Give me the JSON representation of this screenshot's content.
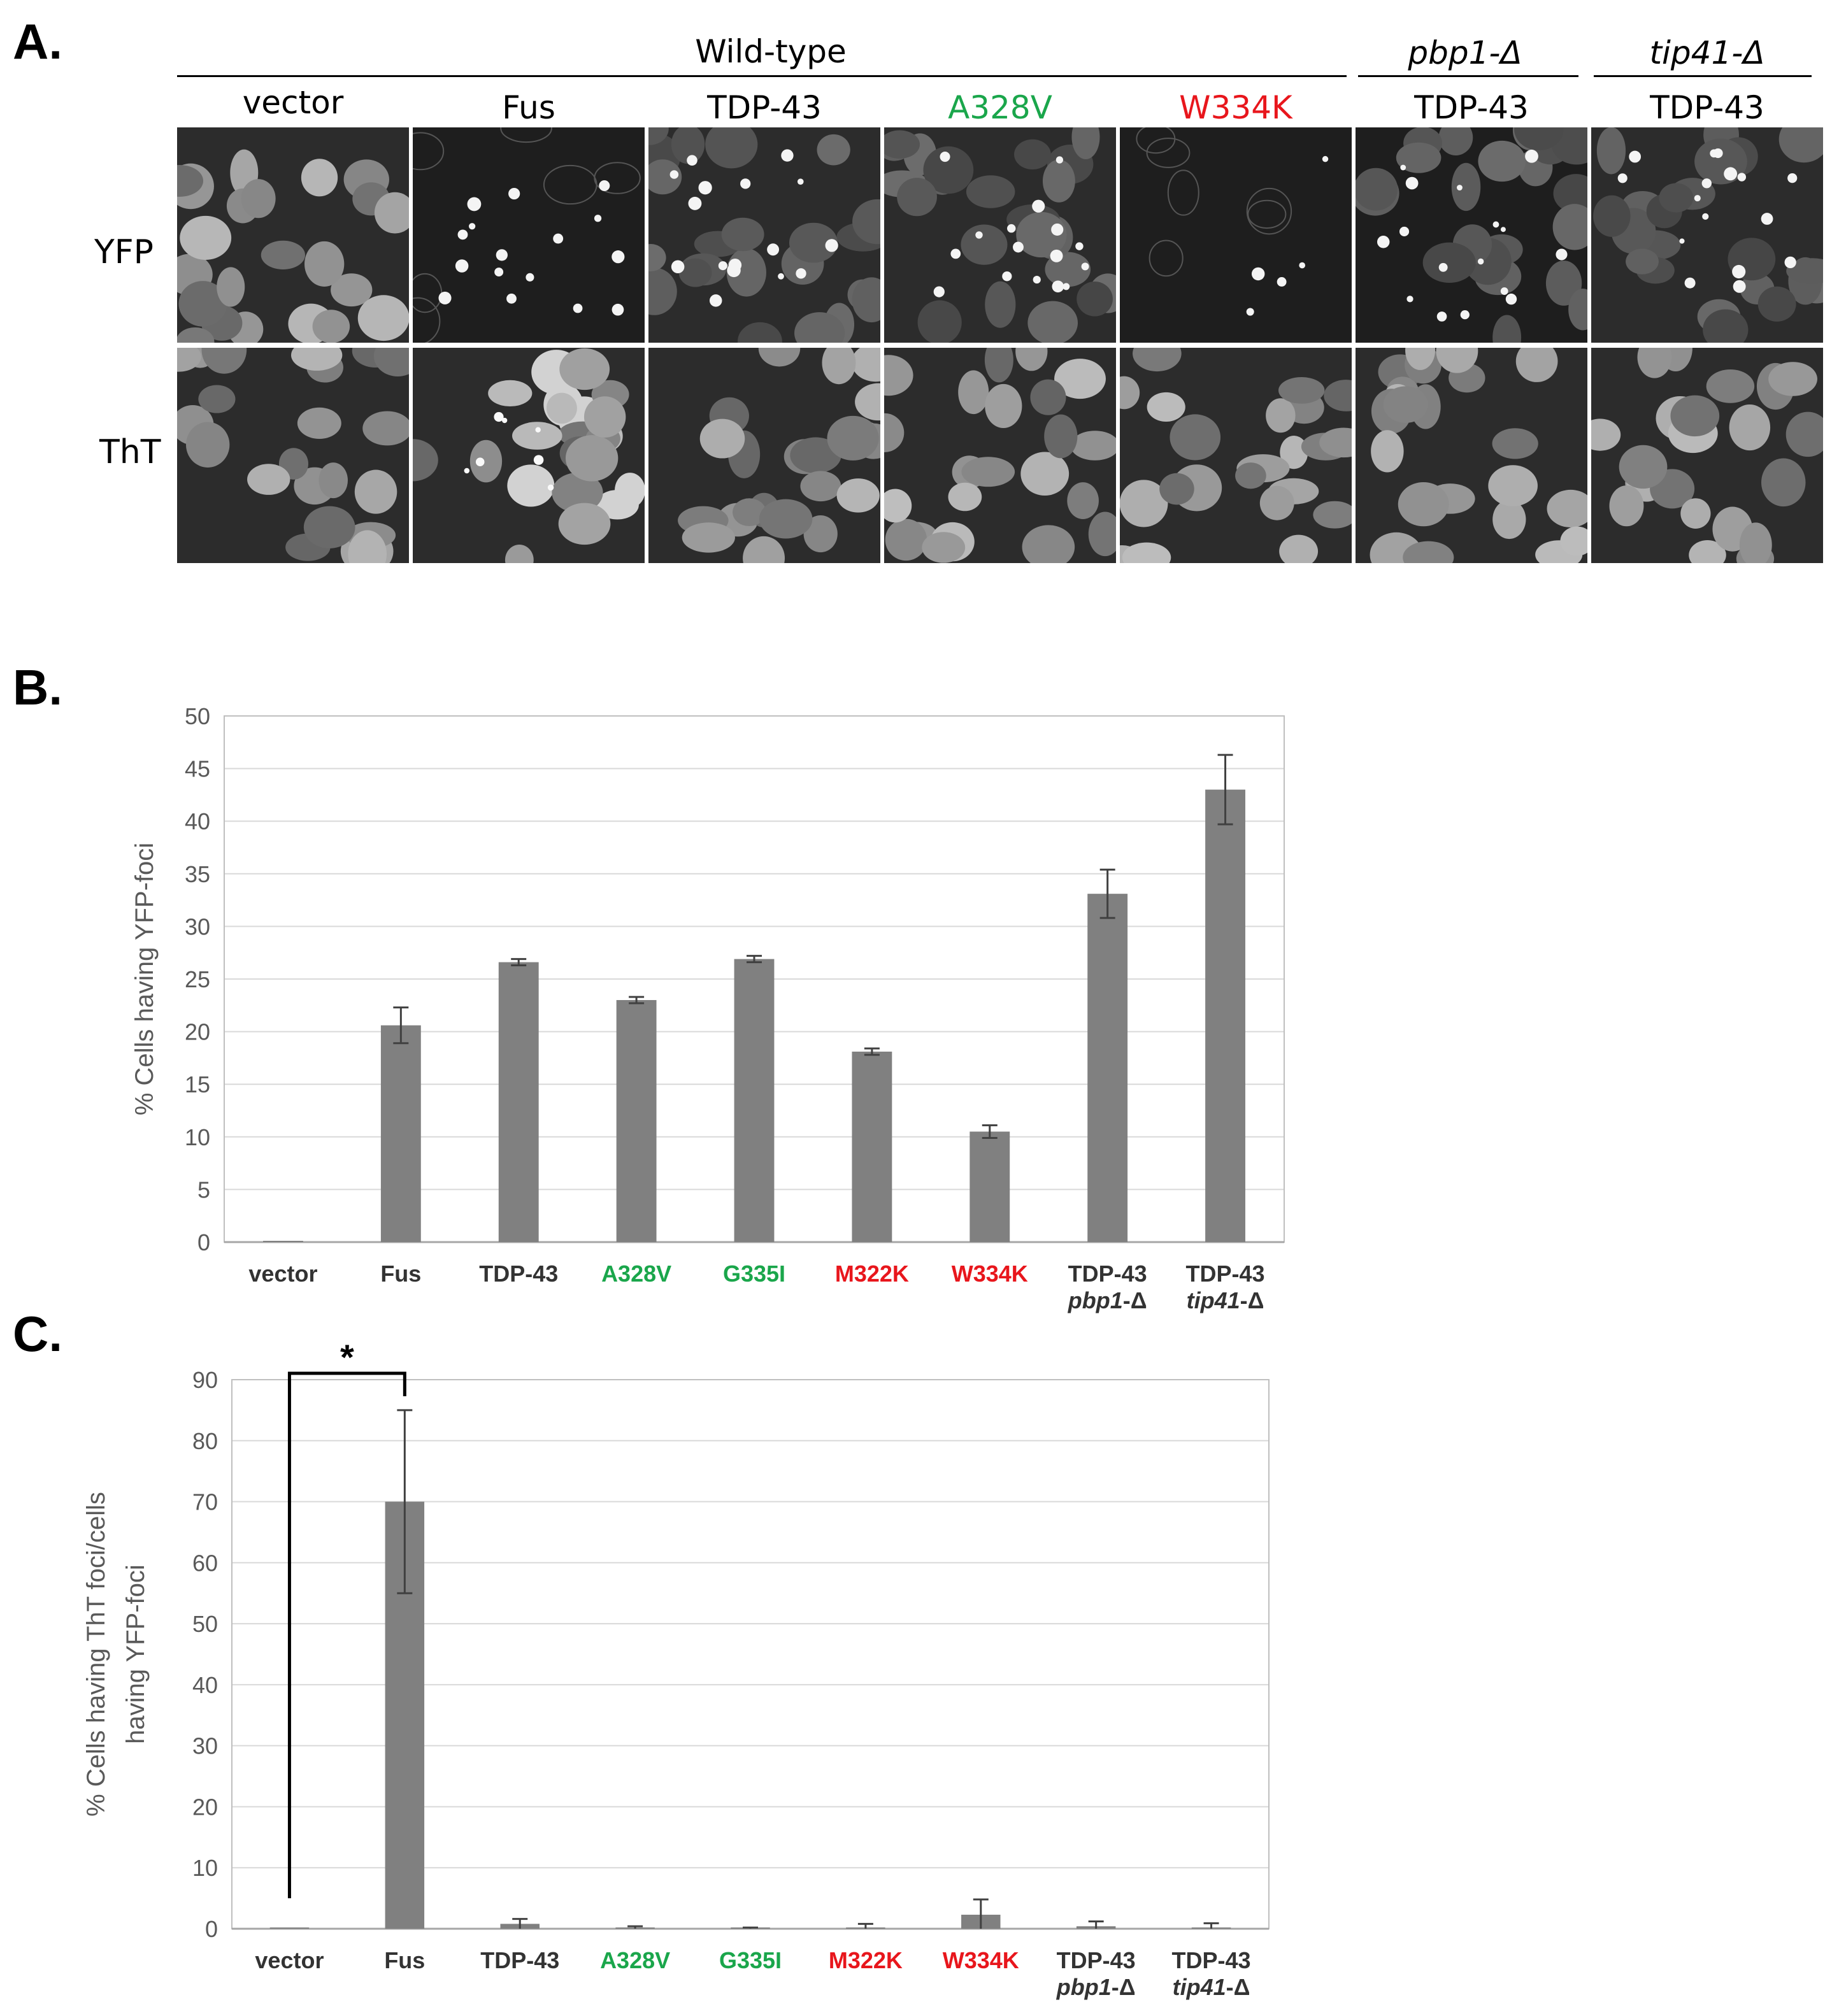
{
  "panel_a": {
    "letter": "A.",
    "group_headers": [
      {
        "label": "Wild-type",
        "italic": false
      },
      {
        "label": "pbp1-Δ",
        "italic": true
      },
      {
        "label": "tip41-Δ",
        "italic": true
      }
    ],
    "columns": [
      {
        "label": "vector",
        "color": "#000000"
      },
      {
        "label": "Fus",
        "color": "#000000"
      },
      {
        "label": "TDP-43",
        "color": "#000000"
      },
      {
        "label": "A328V",
        "color": "#1aa64b"
      },
      {
        "label": "W334K",
        "color": "#e8161c"
      },
      {
        "label": "TDP-43",
        "color": "#000000"
      },
      {
        "label": "TDP-43",
        "color": "#000000"
      }
    ],
    "rows": [
      {
        "label": "YFP"
      },
      {
        "label": "ThT"
      }
    ]
  },
  "panel_b": {
    "letter": "B."
  },
  "panel_c": {
    "letter": "C."
  },
  "chart_data": [
    {
      "type": "bar",
      "ylabel": "% Cells having YFP-foci",
      "ylim": [
        0,
        50
      ],
      "yticks": [
        0,
        5,
        10,
        15,
        20,
        25,
        30,
        35,
        40,
        45,
        50
      ],
      "grid": true,
      "categories": [
        {
          "label": "vector",
          "sub": "",
          "color": "#333333"
        },
        {
          "label": "Fus",
          "sub": "",
          "color": "#333333"
        },
        {
          "label": "TDP-43",
          "sub": "",
          "color": "#333333"
        },
        {
          "label": "A328V",
          "sub": "",
          "color": "#1aa64b"
        },
        {
          "label": "G335I",
          "sub": "",
          "color": "#1aa64b"
        },
        {
          "label": "M322K",
          "sub": "",
          "color": "#e8161c"
        },
        {
          "label": "W334K",
          "sub": "",
          "color": "#e8161c"
        },
        {
          "label": "TDP-43",
          "sub": "pbp1-Δ",
          "color": "#333333"
        },
        {
          "label": "TDP-43",
          "sub": "tip41-Δ",
          "color": "#333333"
        }
      ],
      "values": [
        0.1,
        20.6,
        26.6,
        23.0,
        26.9,
        18.1,
        10.5,
        33.1,
        43.0
      ],
      "errors": [
        0,
        1.7,
        0.3,
        0.3,
        0.3,
        0.3,
        0.6,
        2.3,
        3.3
      ],
      "bar_color": "#808080"
    },
    {
      "type": "bar",
      "ylabel": "% Cells having ThT foci/cells having YFP-foci",
      "ylabel_lines": [
        "% Cells having ThT foci/cells",
        "having YFP-foci"
      ],
      "ylim": [
        0,
        90
      ],
      "yticks": [
        0,
        10,
        20,
        30,
        40,
        50,
        60,
        70,
        80,
        90
      ],
      "grid": true,
      "categories": [
        {
          "label": "vector",
          "sub": "",
          "color": "#333333"
        },
        {
          "label": "Fus",
          "sub": "",
          "color": "#333333"
        },
        {
          "label": "TDP-43",
          "sub": "",
          "color": "#333333"
        },
        {
          "label": "A328V",
          "sub": "",
          "color": "#1aa64b"
        },
        {
          "label": "G335I",
          "sub": "",
          "color": "#1aa64b"
        },
        {
          "label": "M322K",
          "sub": "",
          "color": "#e8161c"
        },
        {
          "label": "W334K",
          "sub": "",
          "color": "#e8161c"
        },
        {
          "label": "TDP-43",
          "sub": "pbp1-Δ",
          "color": "#333333"
        },
        {
          "label": "TDP-43",
          "sub": "tip41-Δ",
          "color": "#333333"
        }
      ],
      "values": [
        0,
        70.0,
        0.8,
        0.2,
        0.1,
        0.1,
        2.3,
        0.4,
        0.2
      ],
      "errors": [
        0,
        15.0,
        0.8,
        0.2,
        0.1,
        0.7,
        2.5,
        0.8,
        0.7
      ],
      "bar_color": "#808080",
      "significance": {
        "from": "vector",
        "to": "Fus",
        "label": "*"
      }
    }
  ]
}
